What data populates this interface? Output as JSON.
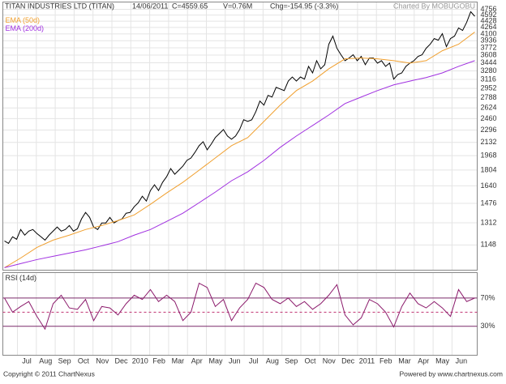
{
  "header": {
    "title": "TITAN INDUSTRIES LTD (TITAN)",
    "date": "14/06/2011",
    "close": "C=4559.65",
    "volume": "V=0.76M",
    "change": "Chg=-154.95 (-3.3%)",
    "credit": "Charted By MOBUGOBU"
  },
  "x_axis": {
    "labels": [
      "Jul",
      "Aug",
      "Sep",
      "Oct",
      "Nov",
      "Dec",
      "2010",
      "Feb",
      "Mar",
      "Apr",
      "May",
      "Jun",
      "Jul",
      "Aug",
      "Sep",
      "Oct",
      "Nov",
      "Dec",
      "2011",
      "Feb",
      "Mar",
      "Apr",
      "May",
      "Jun"
    ]
  },
  "footer": {
    "copyright": "Copyright © 2011 ChartNexus",
    "powered": "Powered by www.chartnexus.com"
  },
  "chart_data": [
    {
      "type": "line",
      "log_scale": true,
      "grid": true,
      "grid_color": "#e4e4e4",
      "ylim": [
        986,
        4970
      ],
      "yticks": [
        4756,
        4592,
        4428,
        4264,
        4100,
        3936,
        3772,
        3608,
        3444,
        3280,
        3116,
        2952,
        2788,
        2624,
        2460,
        2296,
        2132,
        1968,
        1804,
        1640,
        1476,
        1312,
        1148
      ],
      "series": [
        {
          "color": "#000000",
          "values": [
            1176,
            1159,
            1206,
            1188,
            1260,
            1218,
            1248,
            1260,
            1230,
            1206,
            1182,
            1218,
            1248,
            1279,
            1248,
            1260,
            1291,
            1248,
            1266,
            1343,
            1397,
            1356,
            1279,
            1260,
            1311,
            1311,
            1356,
            1311,
            1330,
            1343,
            1390,
            1397,
            1446,
            1481,
            1540,
            1496,
            1594,
            1650,
            1594,
            1675,
            1733,
            1820,
            1759,
            1802,
            1847,
            1912,
            1940,
            2008,
            2089,
            2140,
            2038,
            2109,
            2194,
            2248,
            2303,
            2215,
            2172,
            2215,
            2303,
            2443,
            2419,
            2443,
            2565,
            2734,
            2668,
            2830,
            2802,
            2971,
            2942,
            2913,
            3085,
            3162,
            3085,
            3162,
            3121,
            3371,
            3241,
            3489,
            3322,
            3405,
            3853,
            4046,
            3760,
            3615,
            3489,
            3545,
            3615,
            3489,
            3580,
            3405,
            3545,
            3545,
            3438,
            3489,
            3371,
            3438,
            3121,
            3209,
            3241,
            3371,
            3438,
            3489,
            3580,
            3615,
            3760,
            3853,
            3987,
            3948,
            4106,
            3797,
            3987,
            4046,
            4249,
            4187,
            4397,
            4687,
            4560
          ]
        },
        {
          "name": "EMA (50d)",
          "color": "#f0a030",
          "values": [
            1001,
            1061,
            1131,
            1182,
            1218,
            1260,
            1291,
            1330,
            1376,
            1467,
            1571,
            1675,
            1802,
            1940,
            2089,
            2194,
            2419,
            2668,
            2913,
            3085,
            3322,
            3527,
            3545,
            3527,
            3489,
            3438,
            3489,
            3705,
            3853,
            4147
          ]
        },
        {
          "name": "EMA (200d)",
          "color": "#a030e0",
          "values": [
            1001,
            1026,
            1051,
            1072,
            1093,
            1115,
            1142,
            1171,
            1218,
            1260,
            1323,
            1390,
            1481,
            1579,
            1691,
            1785,
            1912,
            2068,
            2215,
            2360,
            2515,
            2694,
            2802,
            2913,
            3015,
            3085,
            3151,
            3241,
            3371,
            3489
          ]
        }
      ]
    },
    {
      "type": "line",
      "title": "RSI (14d)",
      "grid": true,
      "grid_color": "#7a2a6a",
      "reference_line": 50,
      "ylim": [
        -11,
        106
      ],
      "yticks": [
        {
          "value": 70,
          "label": "70%"
        },
        {
          "value": 30,
          "label": "30%"
        }
      ],
      "series": [
        {
          "color": "#8b1a6b",
          "values": [
            70,
            50,
            58,
            65,
            44,
            26,
            62,
            74,
            56,
            54,
            68,
            38,
            58,
            56,
            46,
            62,
            74,
            68,
            82,
            65,
            74,
            65,
            38,
            50,
            91,
            85,
            58,
            68,
            38,
            56,
            68,
            91,
            85,
            68,
            62,
            70,
            58,
            65,
            54,
            62,
            74,
            89,
            46,
            32,
            42,
            68,
            62,
            50,
            29,
            58,
            77,
            62,
            56,
            65,
            56,
            44,
            82,
            65,
            70
          ]
        }
      ]
    }
  ]
}
